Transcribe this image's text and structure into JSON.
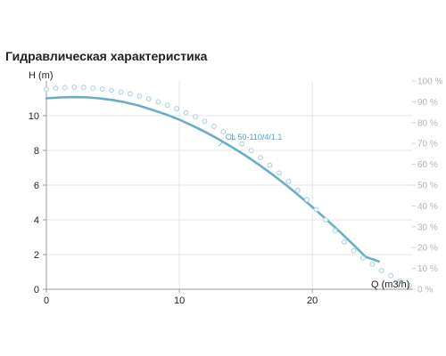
{
  "page_title": "Гидравлическая характеристика",
  "chart_data": {
    "type": "line",
    "title": "Гидравлическая характеристика",
    "ylabel": "H (m)",
    "xlabel": "Q (m3/h)",
    "xlim": [
      0,
      27.5
    ],
    "ylim": [
      0,
      12
    ],
    "x_ticks": [
      "0",
      "10",
      "20"
    ],
    "y_ticks": [
      "0",
      "2",
      "4",
      "6",
      "8",
      "10"
    ],
    "y2_ticks": [
      "0 %",
      "10 %",
      "20 %",
      "30 %",
      "40 %",
      "50 %",
      "60 %",
      "70 %",
      "80 %",
      "90 %",
      "100 %"
    ],
    "y2lim": [
      0,
      100
    ],
    "grid": true,
    "series": [
      {
        "name": "CL 50-110/4/1.1",
        "axis": "left",
        "color": "#6aaec6",
        "style": "solid",
        "x": [
          0,
          1,
          2,
          3,
          4,
          5,
          6,
          7,
          8,
          9,
          10,
          11,
          12,
          13,
          14,
          15,
          16,
          17,
          18,
          19,
          20,
          21,
          22,
          23,
          24,
          25
        ],
        "y": [
          11.0,
          11.05,
          11.07,
          11.06,
          11.0,
          10.9,
          10.76,
          10.57,
          10.33,
          10.07,
          9.77,
          9.42,
          9.04,
          8.62,
          8.17,
          7.69,
          7.17,
          6.61,
          6.02,
          5.39,
          4.74,
          4.06,
          3.36,
          2.63,
          1.87,
          1.6
        ]
      },
      {
        "name": "",
        "axis": "right",
        "color": "#a9d4e6",
        "style": "dots",
        "x": [
          0,
          0.7,
          1.4,
          2.1,
          2.8,
          3.5,
          4.2,
          4.9,
          5.6,
          6.3,
          7.0,
          7.7,
          8.4,
          9.1,
          9.8,
          10.5,
          11.2,
          11.9,
          12.6,
          13.3,
          14.0,
          14.7,
          15.4,
          16.1,
          16.8,
          17.5,
          18.2,
          18.9,
          19.6,
          20.3,
          21.0,
          21.7,
          22.4,
          23.1,
          23.8,
          24.5,
          25.2,
          25.9,
          26.6,
          27.3
        ],
        "y": [
          96,
          96.5,
          96.8,
          97,
          96.9,
          96.6,
          96.1,
          95.5,
          94.7,
          93.8,
          92.7,
          91.4,
          90.0,
          88.4,
          86.7,
          84.8,
          82.8,
          80.6,
          78.2,
          75.6,
          72.8,
          69.8,
          66.6,
          63.2,
          59.6,
          55.8,
          51.8,
          47.5,
          43.0,
          38.3,
          33.3,
          28.1,
          22.7,
          18.5,
          15.0,
          12.0,
          9.0,
          6.5,
          4.0,
          1.8
        ]
      }
    ]
  }
}
